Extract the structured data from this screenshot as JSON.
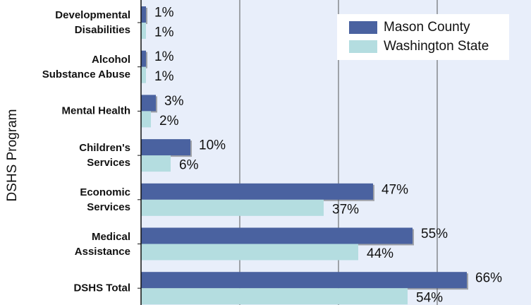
{
  "chart_data": {
    "type": "hbar",
    "y_label": "DSHS Program",
    "categories": [
      "Developmental\nDisabilities",
      "Alcohol\nSubstance Abuse",
      "Mental Health",
      "Children's\nServices",
      "Economic\nServices",
      "Medical\nAssistance",
      "DSHS Total"
    ],
    "series": [
      {
        "name": "Mason County",
        "color": "#4a62a0",
        "values": [
          1,
          1,
          3,
          10,
          47,
          55,
          66
        ],
        "value_labels": [
          "1%",
          "1%",
          "3%",
          "10%",
          "47%",
          "55%",
          "66%"
        ]
      },
      {
        "name": "Washington State",
        "color": "#b4dde0",
        "values": [
          1,
          1,
          2,
          6,
          37,
          44,
          54
        ],
        "value_labels": [
          "1%",
          "1%",
          "2%",
          "6%",
          "37%",
          "44%",
          "54%"
        ]
      }
    ],
    "xlim": [
      0,
      80
    ],
    "xticks": [
      0,
      20,
      40,
      60,
      80
    ],
    "grid": true,
    "legend": "top-right"
  }
}
